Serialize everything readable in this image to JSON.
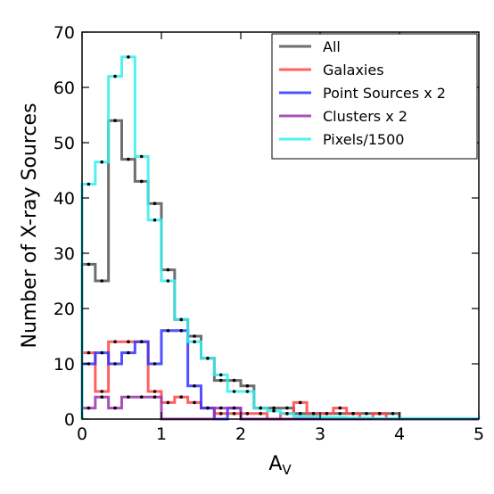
{
  "chart_data": {
    "type": "histogram",
    "title": "",
    "xlabel": "A",
    "xlabel_subscript": "V",
    "ylabel": "Number of X-ray Sources",
    "xlim": [
      0,
      5
    ],
    "ylim": [
      0,
      70
    ],
    "xticks": [
      0,
      1,
      2,
      3,
      4,
      5
    ],
    "yticks": [
      0,
      10,
      20,
      30,
      40,
      50,
      60,
      70
    ],
    "bin_edges": [
      0,
      0.167,
      0.333,
      0.5,
      0.667,
      0.833,
      1.0,
      1.167,
      1.333,
      1.5,
      1.667,
      1.833,
      2.0,
      2.167,
      2.333,
      2.5,
      2.667,
      2.833,
      3.0,
      3.167,
      3.333,
      3.5,
      3.667,
      3.833,
      4.0,
      4.167,
      4.333,
      4.5,
      4.667,
      4.833,
      5.0
    ],
    "legend_position": "top-right",
    "grid": false,
    "series": [
      {
        "name": "All",
        "color": "#555555",
        "values": [
          28,
          25,
          54,
          47,
          43,
          39,
          27,
          18,
          15,
          11,
          7,
          7,
          6,
          2,
          2,
          2,
          1,
          1,
          1,
          1,
          1,
          1,
          1,
          1,
          0,
          0,
          0,
          0,
          0,
          0
        ]
      },
      {
        "name": "Galaxies",
        "color": "#ff4444",
        "values": [
          12,
          5,
          14,
          14,
          14,
          5,
          3,
          4,
          3,
          2,
          1,
          1,
          1,
          1,
          0,
          1,
          3,
          1,
          1,
          2,
          1,
          0,
          1,
          0,
          0,
          0,
          0,
          0,
          0,
          0
        ]
      },
      {
        "name": "Point Sources x 2",
        "color": "#3333ff",
        "values": [
          10,
          12,
          10,
          12,
          14,
          10,
          16,
          16,
          6,
          2,
          0,
          2,
          0,
          0,
          0,
          0,
          0,
          0,
          0,
          0,
          0,
          0,
          0,
          0,
          0,
          0,
          0,
          0,
          0,
          0
        ]
      },
      {
        "name": "Clusters x 2",
        "color": "#9933aa",
        "values": [
          2,
          4,
          2,
          4,
          4,
          4,
          0,
          0,
          0,
          0,
          2,
          2,
          0,
          0,
          0,
          0,
          0,
          0,
          0,
          0,
          0,
          0,
          0,
          0,
          0,
          0,
          0,
          0,
          0,
          0
        ]
      },
      {
        "name": "Pixels/1500",
        "color": "#33eeee",
        "values": [
          42.5,
          46.5,
          62,
          65.5,
          47.5,
          36,
          25,
          18,
          14,
          11,
          8,
          5,
          5,
          2,
          1.5,
          1,
          0.5,
          0.5,
          0.3,
          0.3,
          0.2,
          0.2,
          0.1,
          0.1,
          0.1,
          0.1,
          0.1,
          0.1,
          0.1,
          0.1
        ]
      }
    ]
  }
}
